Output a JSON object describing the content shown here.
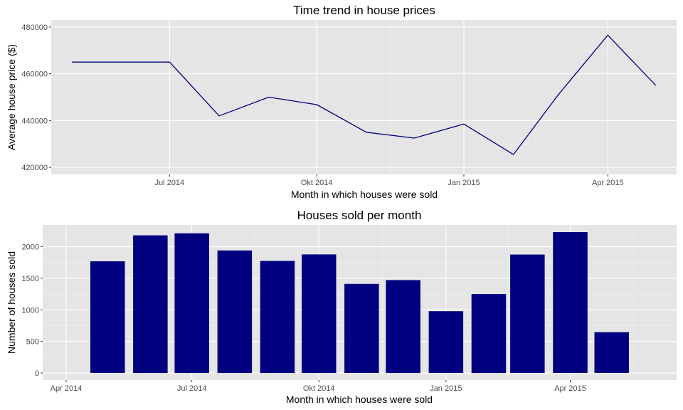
{
  "colors": {
    "panel": "#e5e5e5",
    "grid_major": "#ffffff",
    "grid_minor": "#f2f2f2",
    "series": "#000080",
    "tick": "#333333"
  },
  "chart_data": [
    {
      "type": "line",
      "title": "Time trend in house prices",
      "xlabel": "Month in which houses were sold",
      "ylabel": "Average house price ($)",
      "x": [
        "2014-05-01",
        "2014-06-01",
        "2014-07-01",
        "2014-08-01",
        "2014-09-01",
        "2014-10-01",
        "2014-11-01",
        "2014-12-01",
        "2015-01-01",
        "2015-02-01",
        "2015-03-01",
        "2015-04-01",
        "2015-05-01"
      ],
      "series": [
        {
          "values": [
            465000,
            465000,
            465000,
            442000,
            450000,
            446800,
            435000,
            432500,
            438500,
            425500,
            451000,
            476500,
            455000
          ]
        }
      ],
      "xlim": [
        "2014-04-18",
        "2015-05-14"
      ],
      "ylim": [
        417000,
        483000
      ],
      "x_ticks": [
        {
          "value": "2014-07-01",
          "label": "Jul 2014"
        },
        {
          "value": "2014-10-01",
          "label": "Okt 2014"
        },
        {
          "value": "2015-01-01",
          "label": "Jan 2015"
        },
        {
          "value": "2015-04-01",
          "label": "Apr 2015"
        }
      ],
      "y_ticks": [
        {
          "value": 420000,
          "label": "420000"
        },
        {
          "value": 440000,
          "label": "440000"
        },
        {
          "value": 460000,
          "label": "460000"
        },
        {
          "value": 480000,
          "label": "480000"
        }
      ],
      "grid": true
    },
    {
      "type": "bar",
      "title": "Houses sold per month",
      "xlabel": "Month in which houses were sold",
      "ylabel": "Number of houses sold",
      "x": [
        "2014-05-01",
        "2014-06-01",
        "2014-07-01",
        "2014-08-01",
        "2014-09-01",
        "2014-10-01",
        "2014-11-01",
        "2014-12-01",
        "2015-01-01",
        "2015-02-01",
        "2015-03-01",
        "2015-04-01",
        "2015-05-01"
      ],
      "series": [
        {
          "values": [
            1768,
            2180,
            2211,
            1940,
            1774,
            1878,
            1411,
            1471,
            978,
            1250,
            1875,
            2231,
            646
          ]
        }
      ],
      "xlim": [
        "2014-03-15",
        "2015-06-17"
      ],
      "ylim": [
        -112,
        2344
      ],
      "x_ticks": [
        {
          "value": "2014-04-01",
          "label": "Apr 2014"
        },
        {
          "value": "2014-07-01",
          "label": "Jul 2014"
        },
        {
          "value": "2014-10-01",
          "label": "Okt 2014"
        },
        {
          "value": "2015-01-01",
          "label": "Jan 2015"
        },
        {
          "value": "2015-04-01",
          "label": "Apr 2015"
        }
      ],
      "y_ticks": [
        {
          "value": 0,
          "label": "0"
        },
        {
          "value": 500,
          "label": "500"
        },
        {
          "value": 1000,
          "label": "1000"
        },
        {
          "value": 1500,
          "label": "1500"
        },
        {
          "value": 2000,
          "label": "2000"
        }
      ],
      "bar_width_days": 25,
      "grid": true
    }
  ]
}
